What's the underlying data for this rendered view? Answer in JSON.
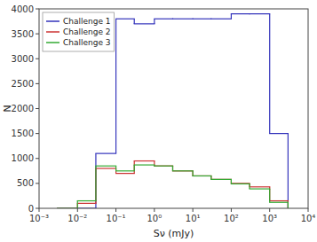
{
  "chart_data": {
    "type": "histogram",
    "xlabel": "Sν (mJy)",
    "ylabel": "N",
    "log": "x",
    "xlim": [
      0.001,
      10000
    ],
    "xticks": [
      {
        "value": 0.001,
        "label": "10⁻³"
      },
      {
        "value": 0.01,
        "label": "10⁻²"
      },
      {
        "value": 0.1,
        "label": "10⁻¹"
      },
      {
        "value": 1,
        "label": "10⁰"
      },
      {
        "value": 10,
        "label": "10¹"
      },
      {
        "value": 100,
        "label": "10²"
      },
      {
        "value": 1000,
        "label": "10³"
      },
      {
        "value": 10000,
        "label": "10⁴"
      }
    ],
    "ylim": [
      0,
      4000
    ],
    "yticks": [
      0,
      500,
      1000,
      1500,
      2000,
      2500,
      3000,
      3500,
      4000
    ],
    "bins": [
      0.003,
      0.01,
      0.03,
      0.1,
      0.3,
      1.0,
      3.0,
      10.0,
      30.0,
      100.0,
      300.0,
      1000.0,
      3000.0
    ],
    "series": [
      {
        "name": "Challenge 1",
        "color": "#3333bb",
        "values": [
          0,
          0,
          1100,
          3800,
          3700,
          3800,
          3800,
          3800,
          3800,
          3900,
          3900,
          1500
        ]
      },
      {
        "name": "Challenge 2",
        "color": "#cc3333",
        "values": [
          0,
          100,
          800,
          700,
          950,
          850,
          750,
          650,
          580,
          500,
          430,
          150
        ]
      },
      {
        "name": "Challenge 3",
        "color": "#33aa33",
        "values": [
          0,
          150,
          850,
          750,
          870,
          850,
          750,
          650,
          580,
          490,
          390,
          120
        ]
      }
    ],
    "legend": "upper-left",
    "grid": false
  }
}
